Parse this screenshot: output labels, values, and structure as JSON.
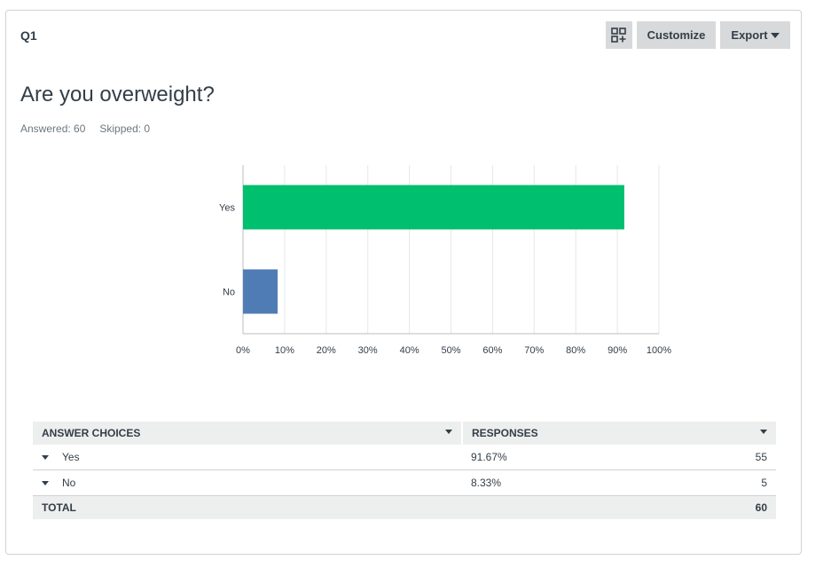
{
  "question": {
    "number": "Q1",
    "title": "Are you overweight?",
    "answered_label": "Answered: 60",
    "skipped_label": "Skipped: 0"
  },
  "toolbar": {
    "customize_label": "Customize",
    "export_label": "Export",
    "layout_icon": "grid-plus-icon"
  },
  "chart_data": {
    "type": "bar",
    "orientation": "horizontal",
    "categories": [
      "Yes",
      "No"
    ],
    "values": [
      91.67,
      8.33
    ],
    "colors": [
      "#00bf6f",
      "#507cb6"
    ],
    "xlim": [
      0,
      100
    ],
    "xticks": [
      "0%",
      "10%",
      "20%",
      "30%",
      "40%",
      "50%",
      "60%",
      "70%",
      "80%",
      "90%",
      "100%"
    ],
    "grid": true
  },
  "table": {
    "header_choices": "ANSWER CHOICES",
    "header_responses": "RESPONSES",
    "rows": [
      {
        "choice": "Yes",
        "percent": "91.67%",
        "count": "55"
      },
      {
        "choice": "No",
        "percent": "8.33%",
        "count": "5"
      }
    ],
    "total_label": "TOTAL",
    "total_count": "60"
  }
}
